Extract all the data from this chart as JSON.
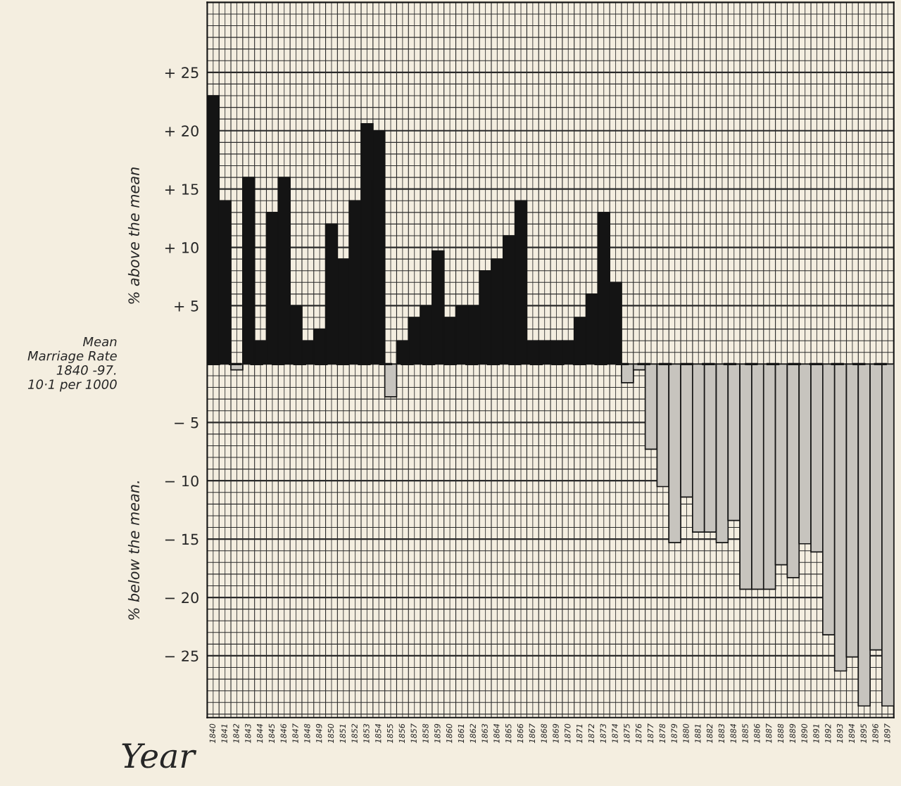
{
  "chart_data": {
    "type": "bar",
    "xlabel": "Year",
    "categories": [
      "1840",
      "1841",
      "1842",
      "1843",
      "1844",
      "1845",
      "1846",
      "1847",
      "1848",
      "1849",
      "1850",
      "1851",
      "1852",
      "1853",
      "1854",
      "1855",
      "1856",
      "1857",
      "1858",
      "1859",
      "1860",
      "1861",
      "1862",
      "1863",
      "1864",
      "1865",
      "1866",
      "1867",
      "1868",
      "1869",
      "1870",
      "1871",
      "1872",
      "1873",
      "1874",
      "1875",
      "1876",
      "1877",
      "1878",
      "1879",
      "1880",
      "1881",
      "1882",
      "1883",
      "1884",
      "1885",
      "1886",
      "1887",
      "1888",
      "1889",
      "1890",
      "1891",
      "1892",
      "1893",
      "1894",
      "1895",
      "1896",
      "1897"
    ],
    "values": [
      23,
      14,
      -0.5,
      16,
      2,
      13,
      16,
      5,
      2,
      3,
      12,
      9,
      14,
      20.6,
      20,
      -2.8,
      2,
      4,
      5,
      9.7,
      4,
      5,
      5,
      8,
      9,
      11,
      14,
      2,
      2,
      2,
      2,
      4,
      6,
      13,
      7,
      -1.6,
      -0.5,
      -7.3,
      -10.5,
      -15.3,
      -11.4,
      -14.4,
      -14.4,
      -15.3,
      -13.4,
      -19.3,
      -19.3,
      -19.3,
      -17.2,
      -18.3,
      -15.4,
      -16.1,
      -23.2,
      -26.3,
      -25.1,
      -29.3,
      -24.5,
      -29.3
    ],
    "colors": [
      "#141414",
      "#141414",
      "#c9c5bd",
      "#141414",
      "#141414",
      "#141414",
      "#141414",
      "#141414",
      "#141414",
      "#141414",
      "#141414",
      "#141414",
      "#141414",
      "#141414",
      "#141414",
      "#c9c5bd",
      "#141414",
      "#141414",
      "#141414",
      "#141414",
      "#141414",
      "#141414",
      "#141414",
      "#141414",
      "#141414",
      "#141414",
      "#141414",
      "#141414",
      "#141414",
      "#141414",
      "#141414",
      "#141414",
      "#141414",
      "#141414",
      "#141414",
      "#c9c5bd",
      "#c9c5bd",
      "#c9c5bd",
      "#c9c5bd",
      "#c9c5bd",
      "#c9c5bd",
      "#c9c5bd",
      "#c9c5bd",
      "#c9c5bd",
      "#c9c5bd",
      "#c9c5bd",
      "#c9c5bd",
      "#c9c5bd",
      "#c9c5bd",
      "#c9c5bd",
      "#c9c5bd",
      "#c9c5bd",
      "#c9c5bd",
      "#c9c5bd",
      "#c9c5bd",
      "#c9c5bd",
      "#c9c5bd",
      "#c9c5bd"
    ],
    "ylim": [
      -30.3,
      31
    ],
    "yticks": [
      {
        "value": -30,
        "label": null
      },
      {
        "value": -29,
        "label": null
      },
      {
        "value": -28,
        "label": null
      },
      {
        "value": -27,
        "label": null
      },
      {
        "value": -26,
        "label": null
      },
      {
        "value": -25,
        "label": "− 25"
      },
      {
        "value": -24,
        "label": null
      },
      {
        "value": -23,
        "label": null
      },
      {
        "value": -22,
        "label": null
      },
      {
        "value": -21,
        "label": null
      },
      {
        "value": -20,
        "label": "− 20"
      },
      {
        "value": -19,
        "label": null
      },
      {
        "value": -18,
        "label": null
      },
      {
        "value": -17,
        "label": null
      },
      {
        "value": -16,
        "label": null
      },
      {
        "value": -15,
        "label": "− 15"
      },
      {
        "value": -14,
        "label": null
      },
      {
        "value": -13,
        "label": null
      },
      {
        "value": -12,
        "label": null
      },
      {
        "value": -11,
        "label": null
      },
      {
        "value": -10,
        "label": "− 10"
      },
      {
        "value": -9,
        "label": null
      },
      {
        "value": -8,
        "label": null
      },
      {
        "value": -7,
        "label": null
      },
      {
        "value": -6,
        "label": null
      },
      {
        "value": -5,
        "label": "− 5"
      },
      {
        "value": -4,
        "label": null
      },
      {
        "value": -3,
        "label": null
      },
      {
        "value": -2,
        "label": null
      },
      {
        "value": -1,
        "label": null
      },
      {
        "value": 0,
        "label": null
      },
      {
        "value": 1,
        "label": null
      },
      {
        "value": 2,
        "label": null
      },
      {
        "value": 3,
        "label": null
      },
      {
        "value": 4,
        "label": null
      },
      {
        "value": 5,
        "label": "+ 5"
      },
      {
        "value": 6,
        "label": null
      },
      {
        "value": 7,
        "label": null
      },
      {
        "value": 8,
        "label": null
      },
      {
        "value": 9,
        "label": null
      },
      {
        "value": 10,
        "label": "+ 10"
      },
      {
        "value": 11,
        "label": null
      },
      {
        "value": 12,
        "label": null
      },
      {
        "value": 13,
        "label": null
      },
      {
        "value": 14,
        "label": null
      },
      {
        "value": 15,
        "label": "+ 15"
      },
      {
        "value": 16,
        "label": null
      },
      {
        "value": 17,
        "label": null
      },
      {
        "value": 18,
        "label": null
      },
      {
        "value": 19,
        "label": null
      },
      {
        "value": 20,
        "label": "+ 20"
      },
      {
        "value": 21,
        "label": null
      },
      {
        "value": 22,
        "label": null
      },
      {
        "value": 23,
        "label": null
      },
      {
        "value": 24,
        "label": null
      },
      {
        "value": 25,
        "label": "+ 25"
      },
      {
        "value": 26,
        "label": null
      },
      {
        "value": 27,
        "label": null
      },
      {
        "value": 28,
        "label": null
      },
      {
        "value": 29,
        "label": null
      },
      {
        "value": 30,
        "label": null
      }
    ],
    "grid": true,
    "ref_lines": [
      {
        "axis": "y",
        "value": 0,
        "label": "Mean\nMarriage Rate\n1840 -97.\n10·1 per 1000",
        "line_style": "dashed",
        "color": "#141414"
      }
    ],
    "annotations": [
      "% above the mean",
      "% below the mean."
    ]
  }
}
